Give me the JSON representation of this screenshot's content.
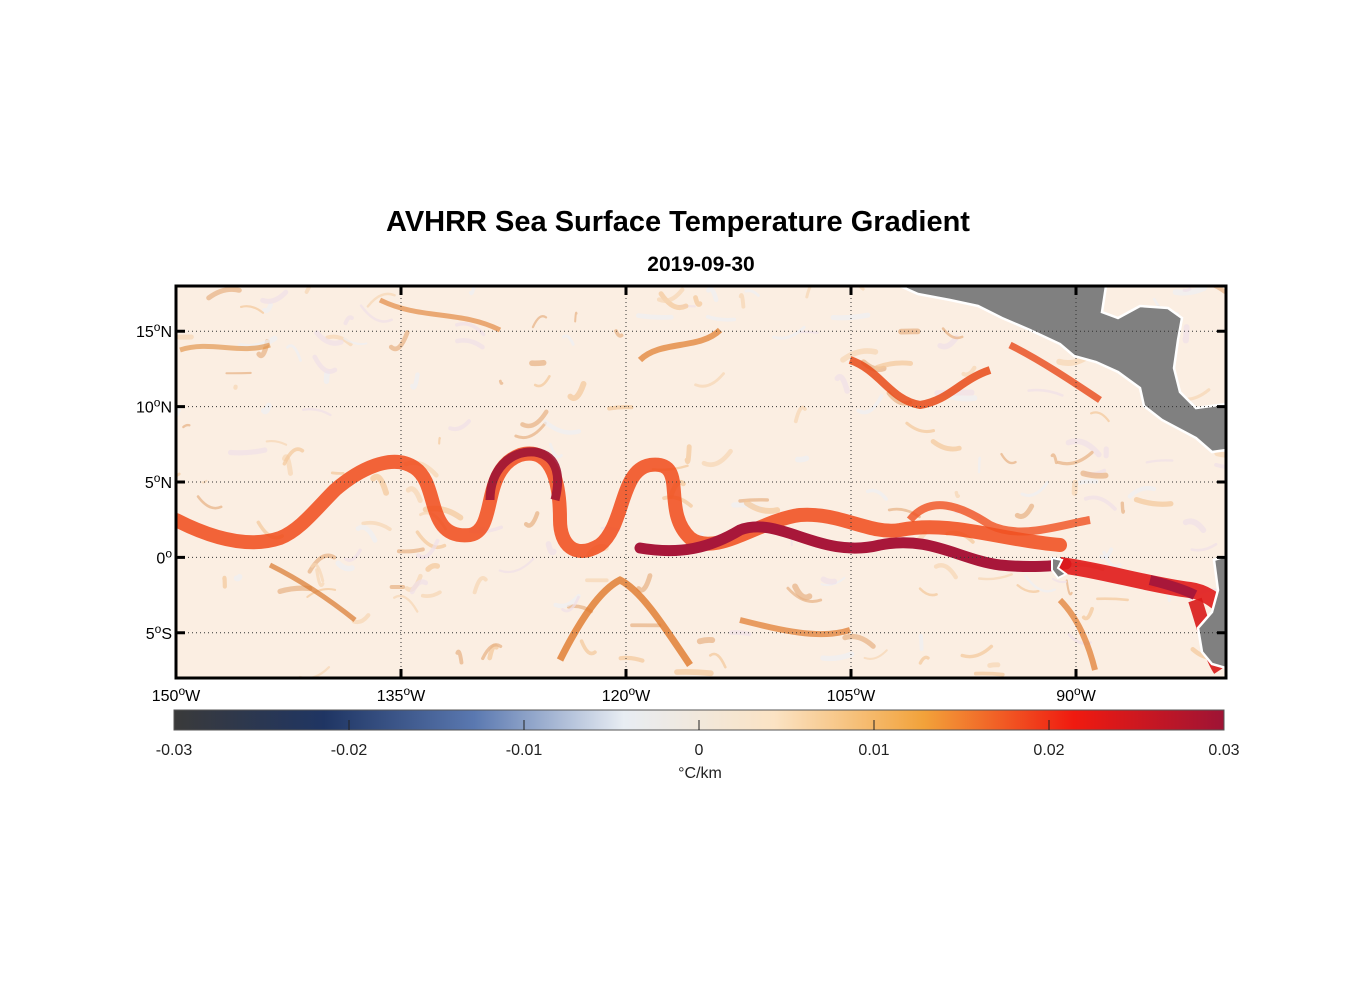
{
  "title": "AVHRR Sea Surface Temperature Gradient",
  "subtitle": "2019-09-30",
  "map": {
    "lon_range": [
      -150,
      -80
    ],
    "lat_range": [
      -8,
      18
    ],
    "grid": true,
    "land_color": "#808080",
    "lat_ticks": [
      {
        "value": 15,
        "label": "15",
        "sup": "o",
        "hem": "N"
      },
      {
        "value": 10,
        "label": "10",
        "sup": "o",
        "hem": "N"
      },
      {
        "value": 5,
        "label": "5",
        "sup": "o",
        "hem": "N"
      },
      {
        "value": 0,
        "label": "0",
        "sup": "o",
        "hem": ""
      },
      {
        "value": -5,
        "label": "5",
        "sup": "o",
        "hem": "S"
      }
    ],
    "lon_ticks": [
      {
        "value": -150,
        "label": "150",
        "sup": "o",
        "hem": "W"
      },
      {
        "value": -135,
        "label": "135",
        "sup": "o",
        "hem": "W"
      },
      {
        "value": -120,
        "label": "120",
        "sup": "o",
        "hem": "W"
      },
      {
        "value": -105,
        "label": "105",
        "sup": "o",
        "hem": "W"
      },
      {
        "value": -90,
        "label": "90",
        "sup": "o",
        "hem": "W"
      }
    ]
  },
  "colorbar": {
    "min": -0.03,
    "max": 0.03,
    "ticks": [
      -0.03,
      -0.02,
      -0.01,
      0,
      0.01,
      0.02,
      0.03
    ],
    "tick_labels": [
      "-0.03",
      "-0.02",
      "-0.01",
      "0",
      "0.01",
      "0.02",
      "0.03"
    ],
    "unit_label": "°C/km",
    "colors": [
      "#3a3a3a",
      "#1f3563",
      "#5a78b0",
      "#e8edf3",
      "#fbe3c4",
      "#f2a23a",
      "#f01a10",
      "#9e1435"
    ]
  }
}
